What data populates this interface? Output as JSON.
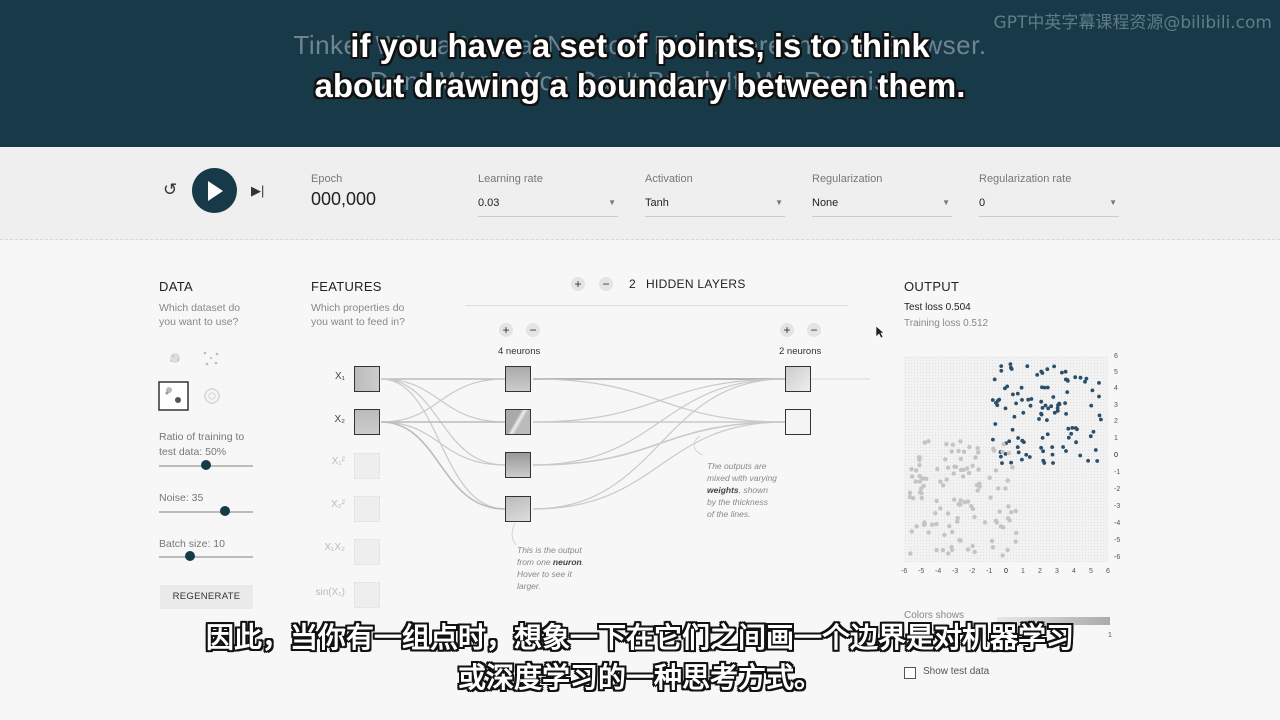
{
  "banner": {
    "title_line1": "Tinker With a Neural Network Right Here in Your Browser.",
    "title_line2": "Don't Worry, You Can't Break It. We Promise.",
    "watermark": "GPT中英字幕课程资源@bilibili.com"
  },
  "subtitles": {
    "en_line1": "if you have a set of points, is to think",
    "en_line2": "about drawing a boundary between them.",
    "zh_line1": "因此，当你有一组点时，想象一下在它们之间画一个边界是对机器学习",
    "zh_line2": "或深度学习的一种思考方式。"
  },
  "controls": {
    "epoch_label": "Epoch",
    "epoch_value": "000,000",
    "learning_rate_label": "Learning rate",
    "learning_rate_value": "0.03",
    "activation_label": "Activation",
    "activation_value": "Tanh",
    "regularization_label": "Regularization",
    "regularization_value": "None",
    "reg_rate_label": "Regularization rate",
    "reg_rate_value": "0"
  },
  "data_panel": {
    "title": "DATA",
    "subtitle_l1": "Which dataset do",
    "subtitle_l2": "you want to use?",
    "ratio_label_l1": "Ratio of training to",
    "ratio_label_l2": "test data:  50%",
    "ratio_value": 0.5,
    "noise_label": "Noise:  35",
    "noise_value": 0.7,
    "batch_label": "Batch size:  10",
    "batch_value": 0.33,
    "regenerate": "REGENERATE"
  },
  "features_panel": {
    "title": "FEATURES",
    "subtitle_l1": "Which properties do",
    "subtitle_l2": "you want to feed in?",
    "features": [
      "X₁",
      "X₂",
      "X₁²",
      "X₂²",
      "X₁X₂",
      "sin(X₁)"
    ]
  },
  "network": {
    "plus": "+",
    "minus": "−",
    "layer_count": "2",
    "hidden_layers_label": "HIDDEN LAYERS",
    "layer1_label": "4 neurons",
    "layer2_label": "2 neurons",
    "note_neuron_l1": "This is the output",
    "note_neuron_l2": "from one ",
    "note_neuron_bold": "neuron",
    "note_neuron_l2b": ".",
    "note_neuron_l3": "Hover to see it",
    "note_neuron_l4": "larger.",
    "note_weights_l1": "The outputs are",
    "note_weights_l2": "mixed with varying",
    "note_weights_bold": "weights",
    "note_weights_l3": ", shown",
    "note_weights_l4": "by the thickness",
    "note_weights_l5": "of the lines."
  },
  "output_panel": {
    "title": "OUTPUT",
    "test_loss": "Test loss 0.504",
    "training_loss": "Training loss 0.512",
    "colors_shows": "Colors shows",
    "show_test_data": "Show test data",
    "legend_max": "1",
    "x_ticks": [
      "-6",
      "-5",
      "-4",
      "-3",
      "-2",
      "-1",
      "0",
      "1",
      "2",
      "3",
      "4",
      "5",
      "6"
    ],
    "y_ticks": [
      "6",
      "5",
      "4",
      "3",
      "2",
      "1",
      "0",
      "-1",
      "-2",
      "-3",
      "-4",
      "-5",
      "-6"
    ]
  },
  "colors": {
    "banner": "#183a48",
    "accent": "#183a48",
    "point_blue": "#2a4f6a",
    "point_gray": "#c4c4c4"
  }
}
